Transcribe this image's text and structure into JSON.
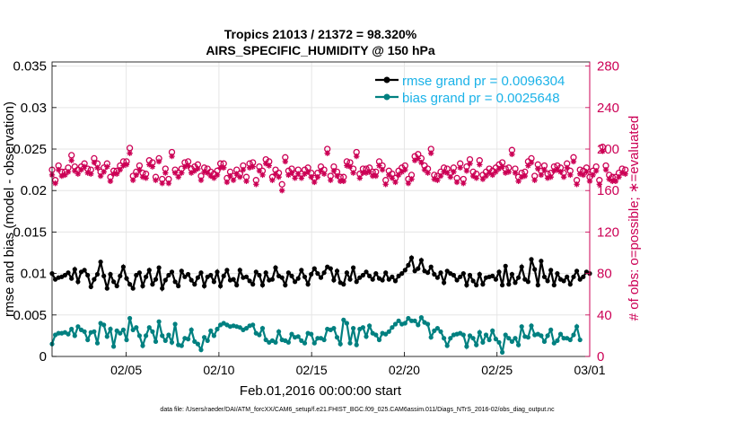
{
  "chart_data": {
    "type": "line",
    "title": "Tropics 21013 / 21372 = 98.320%",
    "subtitle": "AIRS_SPECIFIC_HUMIDITY @ 150 hPa",
    "xlabel": "Feb.01,2016 00:00:00 start",
    "ylabel_left": "rmse and bias (model - observation)",
    "ylabel_right": "# of obs: o=possible; ∗=evaluated",
    "footnote": "data file: /Users/raeder/DAI/ATM_forcXX/CAM6_setup/f.e21.FHIST_BGC.f09_025.CAM6assim.011/Diags_NTrS_2016-02/obs_diag_output.nc",
    "xlim": [
      1,
      30
    ],
    "ylim_left": [
      0,
      0.0355
    ],
    "ylim_right": [
      0,
      284
    ],
    "x_ticks": [
      5,
      10,
      15,
      20,
      25,
      30
    ],
    "x_tick_labels": [
      "02/05",
      "02/10",
      "02/15",
      "02/20",
      "02/25",
      "03/01"
    ],
    "left_ticks": [
      0,
      0.005,
      0.01,
      0.015,
      0.02,
      0.025,
      0.03,
      0.035
    ],
    "left_tick_labels": [
      "0",
      "0.005",
      "0.01",
      "0.015",
      "0.02",
      "0.025",
      "0.03",
      "0.035"
    ],
    "right_ticks": [
      0,
      40,
      80,
      120,
      160,
      200,
      240,
      280
    ],
    "right_tick_labels": [
      "0",
      "40",
      "80",
      "120",
      "160",
      "200",
      "240",
      "280"
    ],
    "grid": true,
    "legend_position": "top-right",
    "colors": {
      "rmse": "#000000",
      "bias": "#008080",
      "counts": "#cc0055",
      "legend_text": "#1ab2e8"
    },
    "series": [
      {
        "name": "rmse grand pr = 0.0096304",
        "color": "#000000",
        "values": [
          0.01,
          0.0093,
          0.0095,
          0.0096,
          0.0098,
          0.0101,
          0.0094,
          0.0105,
          0.009,
          0.0102,
          0.0104,
          0.0098,
          0.0084,
          0.0093,
          0.0099,
          0.0114,
          0.0097,
          0.0082,
          0.0099,
          0.009,
          0.0085,
          0.0097,
          0.0108,
          0.0094,
          0.0087,
          0.0082,
          0.0098,
          0.0101,
          0.0085,
          0.0096,
          0.0104,
          0.0087,
          0.0093,
          0.0107,
          0.0082,
          0.0092,
          0.0098,
          0.0102,
          0.009,
          0.0085,
          0.0103,
          0.0096,
          0.0099,
          0.0092,
          0.0087,
          0.0095,
          0.0101,
          0.0085,
          0.0096,
          0.0098,
          0.009,
          0.0102,
          0.0085,
          0.0097,
          0.0104,
          0.0092,
          0.0093,
          0.0086,
          0.0104,
          0.0095,
          0.0096,
          0.0091,
          0.0087,
          0.0102,
          0.0098,
          0.0086,
          0.0101,
          0.0092,
          0.0093,
          0.0107,
          0.0097,
          0.0095,
          0.0086,
          0.0101,
          0.0097,
          0.009,
          0.0094,
          0.0104,
          0.0096,
          0.0087,
          0.0099,
          0.0106,
          0.01,
          0.0095,
          0.0101,
          0.0108,
          0.0106,
          0.0092,
          0.0103,
          0.0089,
          0.0087,
          0.0101,
          0.0093,
          0.0107,
          0.009,
          0.0095,
          0.0098,
          0.0102,
          0.0097,
          0.0093,
          0.01,
          0.0094,
          0.0092,
          0.0101,
          0.0093,
          0.0096,
          0.0091,
          0.0097,
          0.01,
          0.0104,
          0.011,
          0.0119,
          0.0103,
          0.0106,
          0.0116,
          0.0103,
          0.0101,
          0.0108,
          0.0099,
          0.0095,
          0.0101,
          0.0089,
          0.0103,
          0.01,
          0.0098,
          0.0092,
          0.0096,
          0.01,
          0.0086,
          0.0098,
          0.0091,
          0.0086,
          0.0099,
          0.0087,
          0.0095,
          0.0096,
          0.0097,
          0.0093,
          0.0102,
          0.0086,
          0.0109,
          0.0087,
          0.0099,
          0.0089,
          0.0095,
          0.0108,
          0.0093,
          0.009,
          0.0117,
          0.0105,
          0.0086,
          0.0115,
          0.0096,
          0.0091,
          0.0104,
          0.0086,
          0.01,
          0.0093,
          0.0091,
          0.0096,
          0.0087,
          0.0096,
          0.0103,
          0.0093,
          0.0096,
          0.0102,
          0.01
        ]
      },
      {
        "name": "bias grand pr = 0.0025648",
        "color": "#008080",
        "values": [
          0.0015,
          0.0026,
          0.0028,
          0.0028,
          0.0029,
          0.0027,
          0.0033,
          0.0025,
          0.0036,
          0.0032,
          0.003,
          0.002,
          0.0029,
          0.003,
          0.0016,
          0.004,
          0.0038,
          0.0024,
          0.0033,
          0.0012,
          0.0031,
          0.0028,
          0.0032,
          0.002,
          0.0046,
          0.0032,
          0.0035,
          0.0025,
          0.0013,
          0.0025,
          0.0035,
          0.003,
          0.0018,
          0.0042,
          0.0025,
          0.0019,
          0.0026,
          0.0017,
          0.0039,
          0.0014,
          0.0013,
          0.0022,
          0.0021,
          0.0032,
          0.0018,
          0.0015,
          0.0008,
          0.0023,
          0.0019,
          0.0031,
          0.0025,
          0.0033,
          0.0038,
          0.004,
          0.0038,
          0.0036,
          0.0037,
          0.0036,
          0.0035,
          0.0032,
          0.0034,
          0.0037,
          0.0038,
          0.0028,
          0.0026,
          0.0034,
          0.002,
          0.0017,
          0.0019,
          0.0017,
          0.003,
          0.002,
          0.0019,
          0.0017,
          0.0027,
          0.0023,
          0.0024,
          0.0019,
          0.0016,
          0.0028,
          0.0027,
          0.0016,
          0.0022,
          0.0022,
          0.002,
          0.0033,
          0.0032,
          0.0034,
          0.0023,
          0.0015,
          0.0044,
          0.004,
          0.0016,
          0.0034,
          0.0014,
          0.0033,
          0.0035,
          0.0024,
          0.0037,
          0.0028,
          0.0026,
          0.002,
          0.0028,
          0.0027,
          0.003,
          0.0035,
          0.0039,
          0.0043,
          0.0039,
          0.004,
          0.0046,
          0.0043,
          0.0043,
          0.0038,
          0.0047,
          0.0041,
          0.0039,
          0.0023,
          0.0031,
          0.0034,
          0.003,
          0.0022,
          0.0013,
          0.0022,
          0.0026,
          0.0027,
          0.0028,
          0.0026,
          0.0012,
          0.0025,
          0.0022,
          0.0014,
          0.0029,
          0.0017,
          0.0026,
          0.002,
          0.0031,
          0.0021,
          0.0017,
          0.0005,
          0.0026,
          0.0022,
          0.0018,
          0.0022,
          0.0014,
          0.0036,
          0.0024,
          0.0023,
          0.0037,
          0.0026,
          0.0027,
          0.0025,
          0.0018,
          0.0025,
          0.0032,
          0.0016,
          0.0019,
          0.0027,
          0.0022,
          0.0022,
          0.002,
          0.0026,
          0.0036,
          0.002
        ]
      },
      {
        "name": "obs possible",
        "color": "#cc0055",
        "marker": "o",
        "axis": "right",
        "values": [
          180,
          170,
          184,
          178,
          178,
          182,
          194,
          183,
          180,
          183,
          186,
          181,
          180,
          191,
          186,
          178,
          182,
          186,
          173,
          179,
          179,
          184,
          188,
          188,
          201,
          174,
          178,
          184,
          177,
          176,
          189,
          187,
          173,
          191,
          171,
          181,
          171,
          197,
          180,
          177,
          181,
          187,
          188,
          181,
          183,
          185,
          174,
          182,
          181,
          178,
          176,
          179,
          186,
          186,
          172,
          178,
          174,
          180,
          176,
          184,
          173,
          186,
          187,
          170,
          183,
          179,
          190,
          188,
          173,
          180,
          177,
          166,
          192,
          179,
          181,
          176,
          180,
          176,
          180,
          182,
          177,
          172,
          177,
          183,
          180,
          200,
          174,
          183,
          178,
          173,
          173,
          188,
          187,
          181,
          197,
          176,
          181,
          181,
          182,
          178,
          178,
          188,
          184,
          170,
          179,
          176,
          172,
          179,
          182,
          184,
          171,
          175,
          193,
          195,
          191,
          184,
          181,
          200,
          175,
          174,
          178,
          182,
          181,
          177,
          182,
          172,
          186,
          171,
          183,
          190,
          178,
          176,
          189,
          175,
          178,
          181,
          179,
          182,
          185,
          187,
          181,
          182,
          199,
          181,
          173,
          177,
          178,
          188,
          191,
          174,
          185,
          179,
          184,
          176,
          177,
          183,
          184,
          182,
          177,
          186,
          179,
          192,
          170,
          180,
          179,
          182,
          173,
          179,
          183,
          170,
          202,
          184,
          175,
          173,
          173,
          177,
          181,
          180
        ]
      },
      {
        "name": "obs evaluated",
        "color": "#cc0055",
        "marker": "*",
        "axis": "right",
        "values": [
          175,
          167,
          180,
          174,
          175,
          178,
          189,
          179,
          176,
          180,
          183,
          177,
          176,
          187,
          182,
          174,
          178,
          183,
          169,
          176,
          176,
          180,
          184,
          185,
          196,
          170,
          175,
          180,
          173,
          172,
          185,
          183,
          170,
          188,
          167,
          177,
          167,
          193,
          177,
          173,
          177,
          183,
          184,
          177,
          179,
          181,
          170,
          178,
          177,
          174,
          172,
          175,
          182,
          182,
          168,
          174,
          170,
          176,
          173,
          180,
          169,
          182,
          183,
          166,
          179,
          175,
          186,
          184,
          170,
          176,
          173,
          160,
          188,
          175,
          177,
          172,
          176,
          172,
          176,
          178,
          173,
          168,
          173,
          179,
          176,
          196,
          170,
          179,
          174,
          169,
          169,
          184,
          183,
          177,
          193,
          172,
          177,
          177,
          178,
          174,
          174,
          184,
          180,
          166,
          175,
          172,
          168,
          175,
          178,
          180,
          167,
          171,
          189,
          191,
          187,
          180,
          177,
          196,
          171,
          170,
          174,
          178,
          177,
          173,
          178,
          168,
          182,
          167,
          179,
          186,
          174,
          172,
          185,
          171,
          174,
          177,
          175,
          178,
          181,
          183,
          177,
          178,
          195,
          177,
          169,
          173,
          174,
          184,
          187,
          170,
          181,
          175,
          180,
          172,
          173,
          179,
          180,
          178,
          173,
          182,
          175,
          188,
          166,
          176,
          175,
          178,
          169,
          175,
          179,
          166,
          198,
          180,
          171,
          169,
          169,
          173,
          177,
          176
        ]
      }
    ]
  }
}
